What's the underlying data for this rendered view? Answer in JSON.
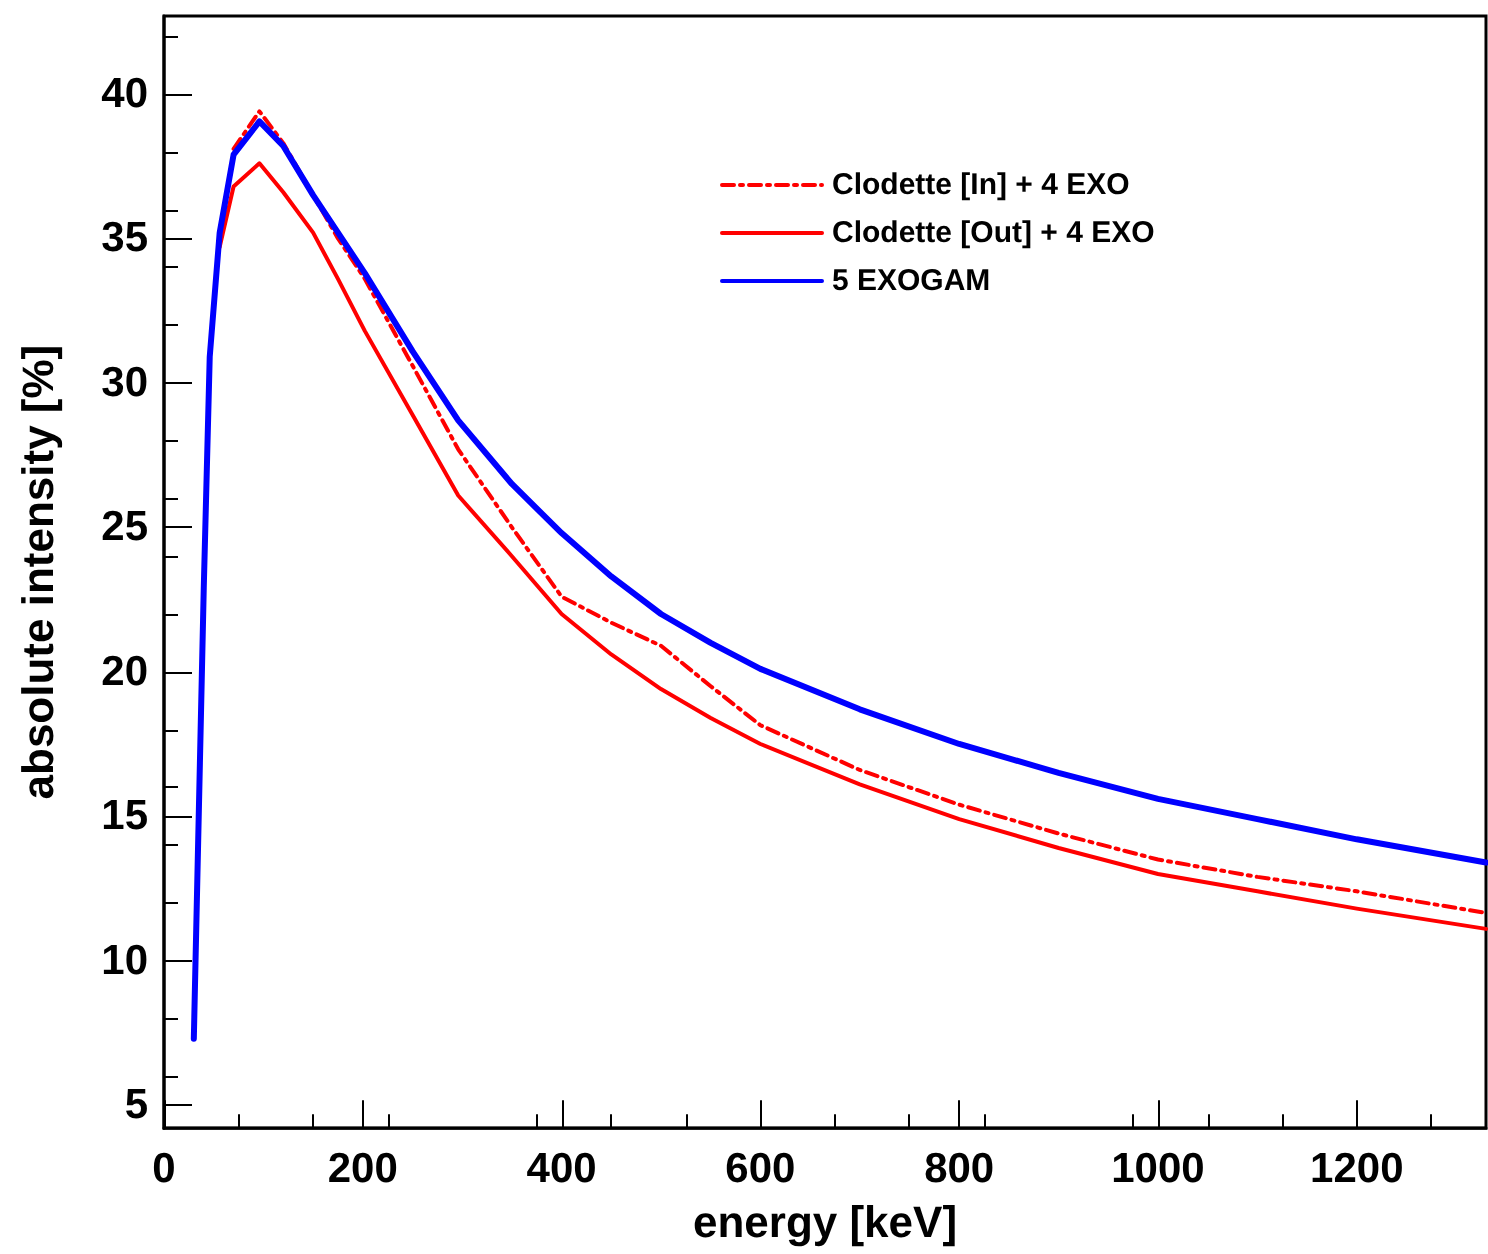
{
  "chart_data": {
    "type": "line",
    "xlabel": "energy [keV]",
    "ylabel": "absolute intensity [%]",
    "xlim": [
      0,
      1330
    ],
    "xticks": [
      0,
      200,
      400,
      600,
      800,
      1000,
      1200
    ],
    "ylim": [
      4.2,
      42.7
    ],
    "yticks": [
      5,
      10,
      15,
      20,
      25,
      30,
      35,
      40
    ],
    "grid": false,
    "legend": "top right",
    "marker": "none",
    "series": [
      {
        "name": "Clodette [In] + 4 EXO",
        "color": "#ff0000",
        "line_style": "dashed",
        "x": [
          70,
          96,
          120,
          150,
          175,
          202,
          250,
          296,
          350,
          400,
          450,
          500,
          550,
          600,
          700,
          800,
          900,
          1000,
          1100,
          1200,
          1330
        ],
        "values": [
          38.1,
          39.4,
          38.3,
          36.5,
          35.0,
          33.6,
          30.6,
          27.7,
          25.0,
          22.6,
          21.7,
          20.9,
          19.5,
          18.15,
          16.6,
          15.4,
          14.4,
          13.5,
          12.9,
          12.4,
          11.65
        ]
      },
      {
        "name": "Clodette [Out] + 4 EXO",
        "color": "#ff0000",
        "line_style": "solid",
        "x": [
          56,
          70,
          96,
          120,
          150,
          175,
          202,
          250,
          296,
          350,
          400,
          450,
          500,
          550,
          600,
          700,
          800,
          900,
          1000,
          1100,
          1200,
          1330
        ],
        "values": [
          34.7,
          36.8,
          37.6,
          36.6,
          35.2,
          33.6,
          31.8,
          28.9,
          26.1,
          24.0,
          22.0,
          20.6,
          19.4,
          18.4,
          17.5,
          16.1,
          14.9,
          13.9,
          13.0,
          12.4,
          11.8,
          11.1
        ]
      },
      {
        "name": "5 EXOGAM",
        "color": "#0000ff",
        "line_style": "solid",
        "x": [
          30,
          40,
          46,
          56,
          70,
          96,
          120,
          150,
          175,
          202,
          250,
          296,
          350,
          400,
          450,
          500,
          550,
          600,
          700,
          800,
          900,
          1000,
          1100,
          1200,
          1330
        ],
        "values": [
          7.3,
          22.9,
          30.9,
          35.2,
          37.9,
          39.05,
          38.2,
          36.5,
          35.2,
          33.8,
          31.1,
          28.7,
          26.5,
          24.8,
          23.3,
          22.0,
          21.0,
          20.1,
          18.7,
          17.5,
          16.5,
          15.6,
          14.9,
          14.2,
          13.4
        ]
      }
    ]
  }
}
